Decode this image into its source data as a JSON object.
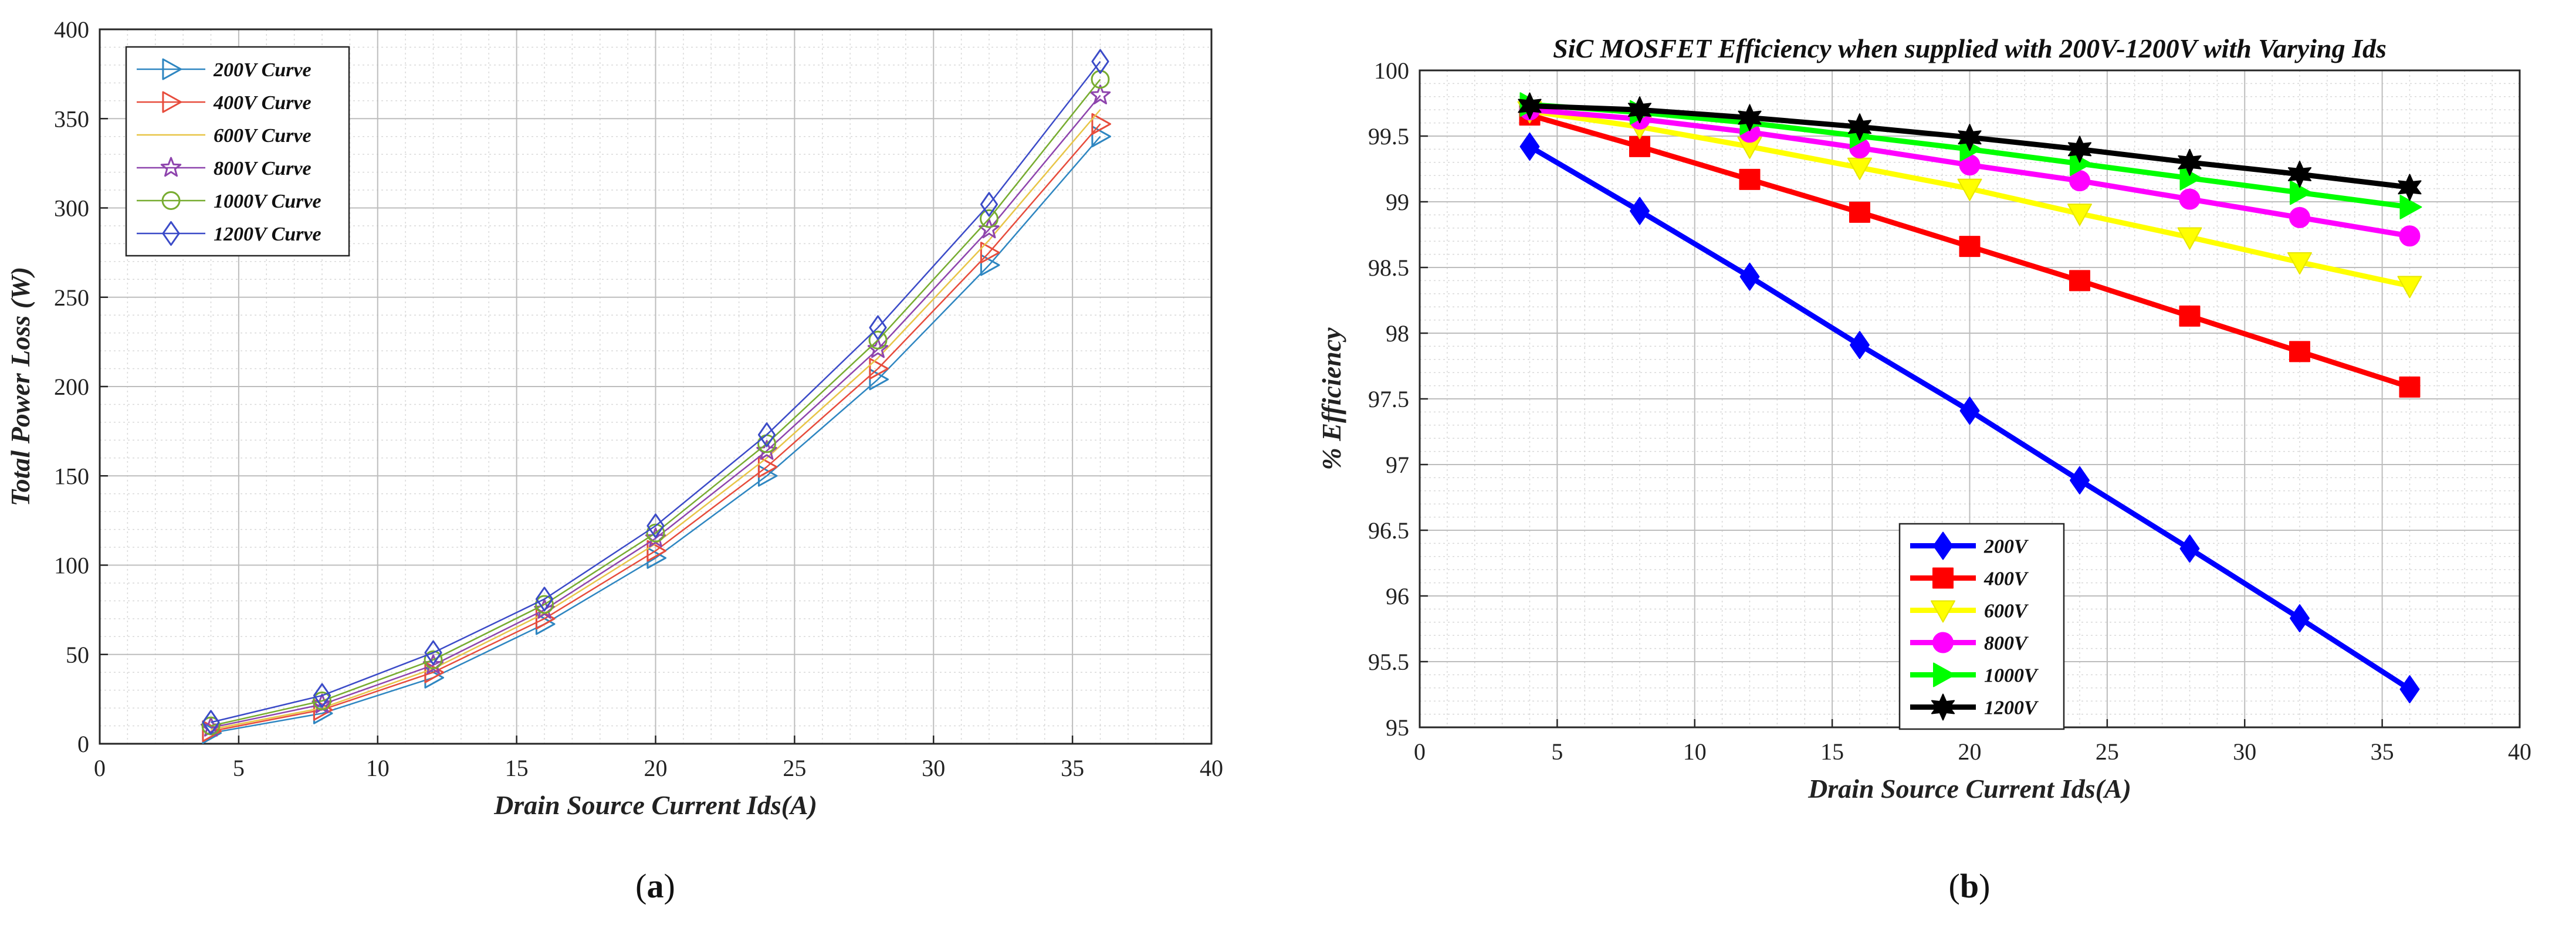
{
  "panels": [
    {
      "caption": "a",
      "chart_data": {
        "type": "line",
        "title": "",
        "xlabel": "Drain Source Current Ids(A)",
        "ylabel": "Total Power Loss (W)",
        "xlim": [
          0,
          40
        ],
        "ylim": [
          0,
          400
        ],
        "xticks": [
          0,
          5,
          10,
          15,
          20,
          25,
          30,
          35,
          40
        ],
        "yticks": [
          0,
          50,
          100,
          150,
          200,
          250,
          300,
          350,
          400
        ],
        "grid": true,
        "minor_grid": true,
        "legend_position": "top-left",
        "x": [
          4,
          8,
          12,
          16,
          20,
          24,
          28,
          32,
          36
        ],
        "series": [
          {
            "name": "200V Curve",
            "color": "#2E86C1",
            "marker": "triangle-right",
            "values": [
              6,
              17,
              37,
              67,
              104,
              150,
              204,
              268,
              340
            ]
          },
          {
            "name": "400V Curve",
            "color": "#E74C3C",
            "marker": "triangle-right",
            "values": [
              7,
              19,
              40,
              70,
              108,
              155,
              210,
              275,
              347
            ]
          },
          {
            "name": "600V Curve",
            "color": "#E8C547",
            "marker": "none",
            "values": [
              8,
              20,
              42,
              73,
              112,
              160,
              216,
              282,
              355
            ]
          },
          {
            "name": "800V Curve",
            "color": "#8E44AD",
            "marker": "star",
            "values": [
              9,
              22,
              44,
              75,
              115,
              164,
              221,
              288,
              363
            ]
          },
          {
            "name": "1000V Curve",
            "color": "#77AC30",
            "marker": "circle",
            "values": [
              10,
              24,
              47,
              78,
              118,
              168,
              226,
              294,
              372
            ]
          },
          {
            "name": "1200V Curve",
            "color": "#3B4BC8",
            "marker": "diamond",
            "values": [
              12,
              27,
              51,
              81,
              122,
              173,
              233,
              302,
              382
            ]
          }
        ]
      }
    },
    {
      "caption": "b",
      "chart_data": {
        "type": "line",
        "title": "SiC MOSFET Efficiency when supplied with 200V-1200V with Varying Ids",
        "xlabel": "Drain Source Current Ids(A)",
        "ylabel": "% Efficiency",
        "xlim": [
          0,
          40
        ],
        "ylim": [
          95,
          100
        ],
        "xticks": [
          0,
          5,
          10,
          15,
          20,
          25,
          30,
          35,
          40
        ],
        "yticks": [
          95,
          95.5,
          96,
          96.5,
          97,
          97.5,
          98,
          98.5,
          99,
          99.5,
          100
        ],
        "grid": true,
        "minor_grid": true,
        "legend_position": "bottom-center",
        "x": [
          4,
          8,
          12,
          16,
          20,
          24,
          28,
          32,
          36
        ],
        "series": [
          {
            "name": "200V",
            "color": "#0000FF",
            "marker": "diamond",
            "values": [
              99.42,
              98.93,
              98.43,
              97.91,
              97.41,
              96.88,
              96.36,
              95.83,
              95.29
            ]
          },
          {
            "name": "400V",
            "color": "#FF0000",
            "marker": "square",
            "values": [
              99.66,
              99.42,
              99.17,
              98.92,
              98.66,
              98.4,
              98.13,
              97.86,
              97.59
            ]
          },
          {
            "name": "600V",
            "color": "#FFFF00",
            "marker": "triangle-down",
            "values": [
              99.69,
              99.57,
              99.42,
              99.26,
              99.1,
              98.91,
              98.73,
              98.54,
              98.36
            ]
          },
          {
            "name": "800V",
            "color": "#FF00FF",
            "marker": "circle",
            "values": [
              99.7,
              99.63,
              99.53,
              99.41,
              99.28,
              99.16,
              99.02,
              98.88,
              98.74
            ]
          },
          {
            "name": "1000V",
            "color": "#00FF00",
            "marker": "triangle-right",
            "values": [
              99.74,
              99.68,
              99.6,
              99.5,
              99.4,
              99.29,
              99.18,
              99.07,
              98.96
            ]
          },
          {
            "name": "1200V",
            "color": "#000000",
            "marker": "hexagram",
            "values": [
              99.73,
              99.7,
              99.64,
              99.57,
              99.49,
              99.4,
              99.3,
              99.21,
              99.11
            ]
          }
        ]
      }
    }
  ]
}
